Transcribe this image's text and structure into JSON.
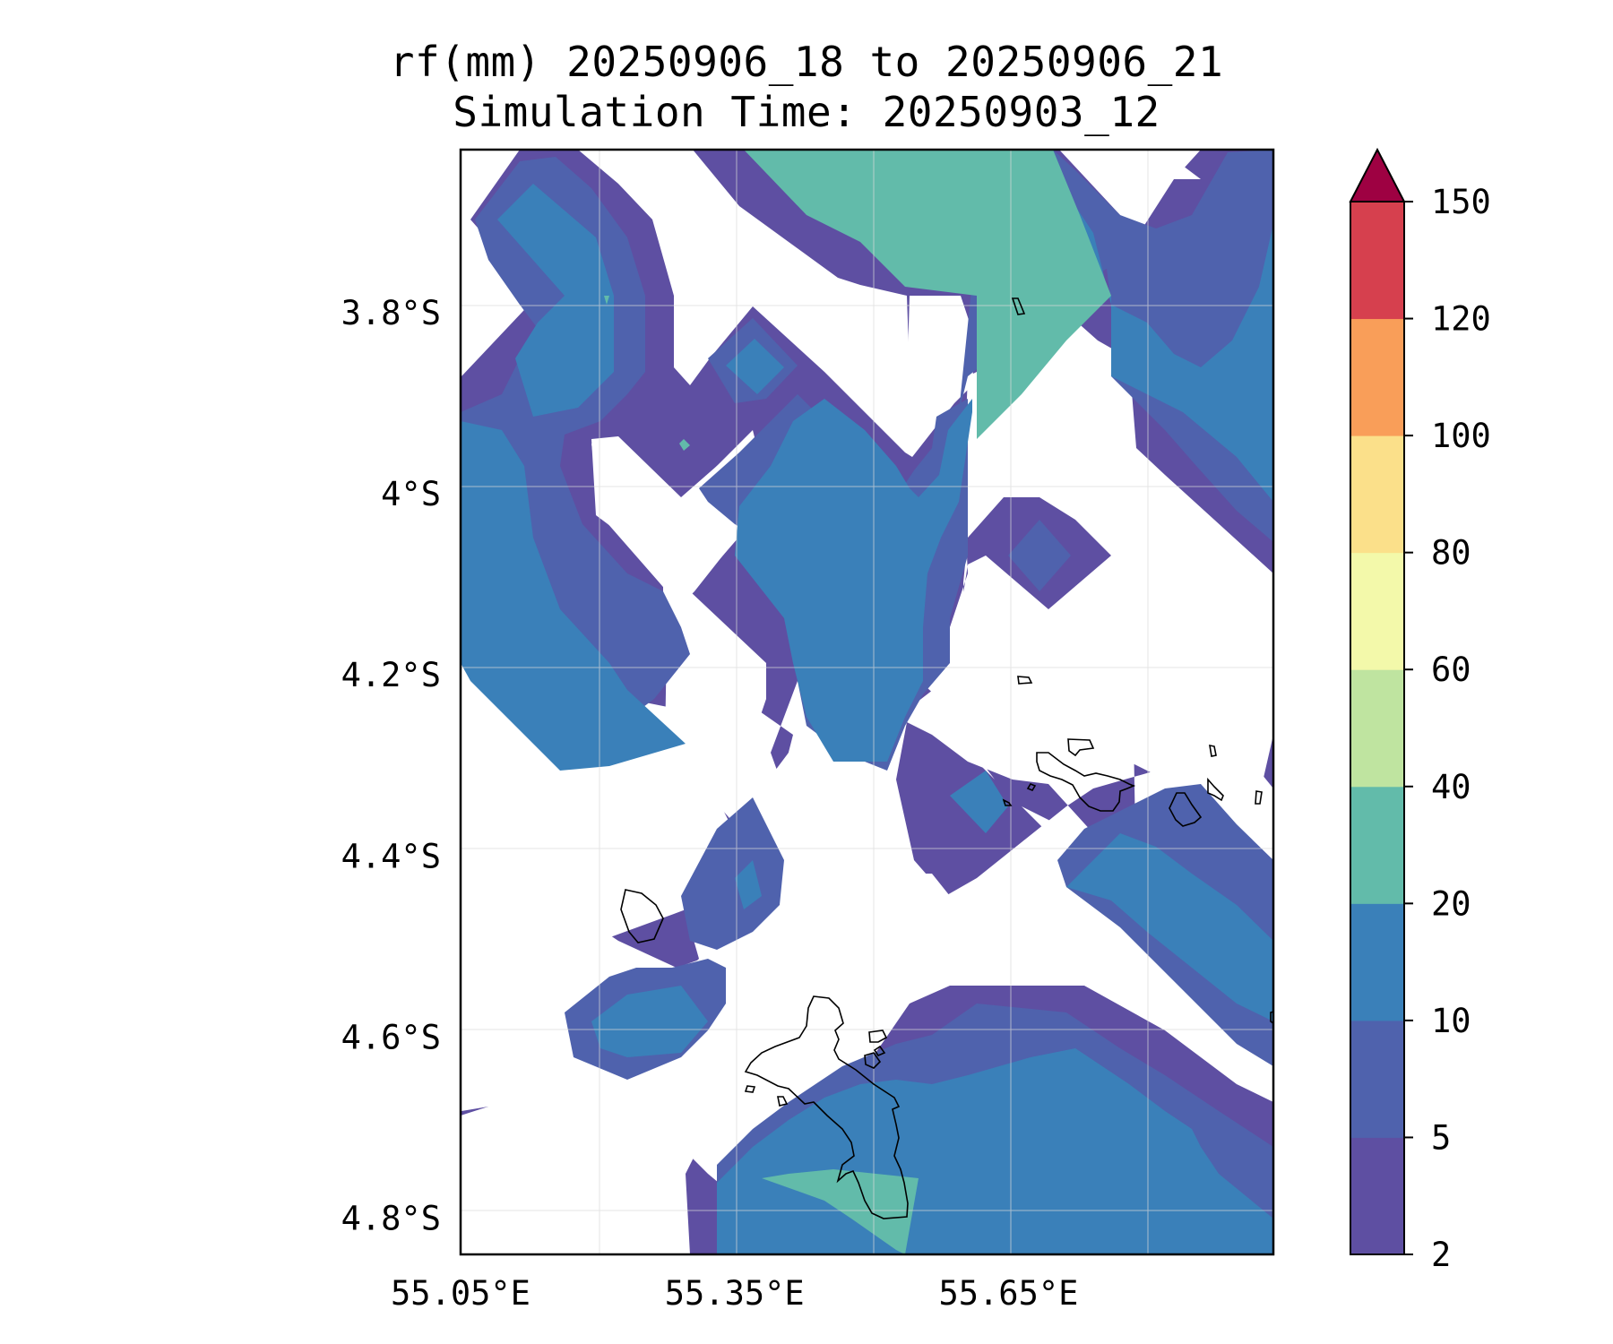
{
  "title": {
    "line1": "rf(mm) 20250906_18 to 20250906_21",
    "line2": "Simulation Time: 20250903_12"
  },
  "map": {
    "lon_range": [
      55.05,
      55.94
    ],
    "lat_range": [
      -4.84,
      -3.62
    ],
    "x_ticks": [
      {
        "value": 55.05,
        "label": "55.05°E"
      },
      {
        "value": 55.35,
        "label": "55.35°E"
      },
      {
        "value": 55.65,
        "label": "55.65°E"
      }
    ],
    "y_ticks": [
      {
        "value": -3.8,
        "label": "3.8°S"
      },
      {
        "value": -4.0,
        "label": "4°S"
      },
      {
        "value": -4.2,
        "label": "4.2°S"
      },
      {
        "value": -4.4,
        "label": "4.4°S"
      },
      {
        "value": -4.6,
        "label": "4.6°S"
      },
      {
        "value": -4.8,
        "label": "4.8°S"
      }
    ],
    "gridlines": true,
    "coastlines": true
  },
  "colorbar": {
    "levels": [
      {
        "value": 2,
        "label": "2"
      },
      {
        "value": 5,
        "label": "5"
      },
      {
        "value": 10,
        "label": "10"
      },
      {
        "value": 20,
        "label": "20"
      },
      {
        "value": 40,
        "label": "40"
      },
      {
        "value": 60,
        "label": "60"
      },
      {
        "value": 80,
        "label": "80"
      },
      {
        "value": 100,
        "label": "100"
      },
      {
        "value": 120,
        "label": "120"
      },
      {
        "value": 150,
        "label": "150"
      }
    ],
    "colors": [
      "#5e4fa2",
      "#4f62ad",
      "#3a80b9",
      "#62bbaa",
      "#bfe4a0",
      "#f3f9aa",
      "#fbe08a",
      "#f99e59",
      "#d6404e"
    ],
    "extend_max_color": "#9e0142"
  }
}
